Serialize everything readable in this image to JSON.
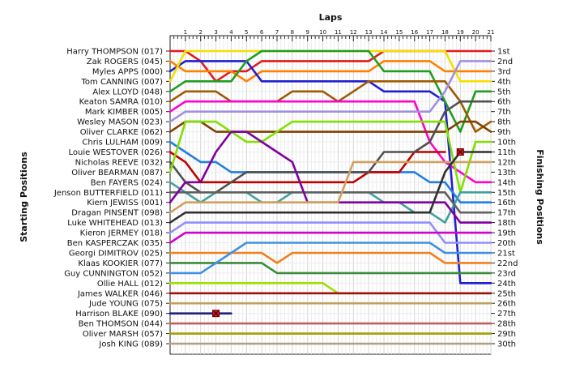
{
  "chart_data": {
    "type": "line",
    "title": "",
    "top_axis_title": "Laps",
    "left_axis_title": "Starting Positions",
    "right_axis_title": "Finishing Positions",
    "laps": [
      1,
      2,
      3,
      4,
      5,
      6,
      7,
      8,
      9,
      10,
      11,
      12,
      13,
      14,
      15,
      16,
      17,
      18,
      19,
      20,
      21
    ],
    "finishing_labels": [
      "1st",
      "2nd",
      "3rd",
      "4th",
      "5th",
      "6th",
      "7th",
      "8th",
      "9th",
      "10th",
      "11th",
      "12th",
      "13th",
      "14th",
      "15th",
      "16th",
      "17th",
      "18th",
      "19th",
      "20th",
      "21st",
      "22nd",
      "23rd",
      "24th",
      "25th",
      "26th",
      "27th",
      "28th",
      "29th",
      "30th"
    ],
    "grid_on": true,
    "inverted_y": true,
    "ylim": [
      1,
      30
    ],
    "xlim": [
      0,
      21
    ],
    "series": [
      {
        "name": "Harry THOMPSON (017)",
        "color": "#e41a1c",
        "positions": [
          1,
          1,
          2,
          4,
          3,
          3,
          2,
          2,
          2,
          2,
          2,
          2,
          2,
          2,
          1,
          1,
          1,
          1,
          1,
          1,
          1,
          1
        ]
      },
      {
        "name": "Zak ROGERS (045)",
        "color": "#ff7f00",
        "positions": [
          2,
          3,
          3,
          3,
          3,
          4,
          3,
          3,
          3,
          3,
          3,
          3,
          3,
          3,
          2,
          2,
          2,
          2,
          3,
          3,
          3,
          3
        ]
      },
      {
        "name": "Myles APPS (000)",
        "color": "#1f1fd0",
        "positions": [
          3,
          2,
          2,
          2,
          2,
          2,
          4,
          4,
          4,
          4,
          4,
          4,
          4,
          4,
          5,
          5,
          5,
          5,
          6,
          24,
          24,
          24
        ]
      },
      {
        "name": "Tom CANNING (007)",
        "color": "#f5e000",
        "positions": [
          4,
          1,
          1,
          1,
          1,
          1,
          1,
          1,
          1,
          1,
          1,
          1,
          1,
          1,
          1,
          1,
          1,
          1,
          1,
          4,
          4,
          4
        ]
      },
      {
        "name": "Alex LLOYD (048)",
        "color": "#1e9e1e",
        "positions": [
          5,
          4,
          4,
          4,
          4,
          2,
          1,
          1,
          1,
          1,
          1,
          1,
          1,
          1,
          3,
          3,
          3,
          3,
          6,
          9,
          5,
          5
        ]
      },
      {
        "name": "Keaton SAMRA (010)",
        "color": "#a05a00",
        "positions": [
          6,
          5,
          5,
          5,
          6,
          6,
          6,
          6,
          5,
          5,
          5,
          6,
          5,
          4,
          4,
          4,
          4,
          4,
          4,
          6,
          9,
          8
        ]
      },
      {
        "name": "Mark KIMBER (005)",
        "color": "#ff00cc",
        "positions": [
          7,
          6,
          6,
          6,
          6,
          6,
          6,
          6,
          6,
          6,
          6,
          6,
          6,
          6,
          6,
          6,
          6,
          10,
          12,
          13,
          14,
          14
        ]
      },
      {
        "name": "Wesley MASON (023)",
        "color": "#a090e0",
        "positions": [
          8,
          7,
          7,
          7,
          7,
          7,
          7,
          7,
          7,
          7,
          7,
          7,
          7,
          7,
          7,
          7,
          7,
          7,
          5,
          2,
          2,
          2
        ]
      },
      {
        "name": "Oliver CLARKE (062)",
        "color": "#804000",
        "positions": [
          9,
          8,
          8,
          9,
          9,
          9,
          9,
          9,
          9,
          9,
          9,
          9,
          9,
          9,
          9,
          9,
          9,
          9,
          9,
          8,
          8,
          9
        ]
      },
      {
        "name": "Chris LULHAM (009)",
        "color": "#2080e0",
        "positions": [
          10,
          11,
          12,
          12,
          13,
          13,
          13,
          13,
          13,
          13,
          13,
          13,
          13,
          13,
          13,
          13,
          13,
          14,
          14,
          16,
          16,
          16
        ]
      },
      {
        "name": "Louie WESTOVER (026)",
        "color": "#c00000",
        "positions": [
          11,
          12,
          14,
          14,
          14,
          14,
          14,
          14,
          14,
          14,
          14,
          14,
          14,
          13,
          13,
          13,
          11,
          11,
          11
        ]
      },
      {
        "name": "Nicholas REEVE (032)",
        "color": "#505050",
        "positions": [
          12,
          14,
          15,
          15,
          14,
          13,
          13,
          13,
          13,
          13,
          13,
          13,
          13,
          13,
          11,
          11,
          11,
          10,
          7,
          6,
          6,
          6
        ]
      },
      {
        "name": "Oliver BEARMAN (087)",
        "color": "#80e000",
        "positions": [
          13,
          8,
          8,
          8,
          9,
          10,
          10,
          9,
          8,
          8,
          8,
          8,
          8,
          8,
          8,
          8,
          8,
          8,
          8,
          15,
          10,
          10
        ]
      },
      {
        "name": "Ben FAYERS (024)",
        "color": "#40a0a0",
        "positions": [
          14,
          15,
          16,
          15,
          15,
          15,
          16,
          16,
          15,
          15,
          15,
          15,
          15,
          15,
          16,
          16,
          17,
          17,
          18,
          15,
          15,
          15
        ]
      },
      {
        "name": "Jenson BUTTERFIELD (011)",
        "color": "#606060",
        "positions": [
          15,
          15,
          15,
          15,
          15,
          15,
          15,
          15,
          15,
          15,
          15,
          15,
          15,
          15,
          15,
          15,
          15,
          15,
          15,
          17,
          17,
          17
        ]
      },
      {
        "name": "Kiern JEWISS (001)",
        "color": "#8000a0",
        "positions": [
          16,
          14,
          14,
          11,
          9,
          9,
          10,
          11,
          12,
          16,
          16,
          16,
          16,
          16,
          16,
          16,
          16,
          16,
          16,
          18,
          18,
          18
        ]
      },
      {
        "name": "Dragan PINSENT (098)",
        "color": "#d0a060",
        "positions": [
          17,
          16,
          16,
          16,
          16,
          16,
          16,
          16,
          16,
          16,
          16,
          16,
          12,
          12,
          12,
          12,
          12,
          12,
          12,
          12,
          12,
          12
        ]
      },
      {
        "name": "Luke WHITEHEAD (013)",
        "color": "#303030",
        "positions": [
          18,
          17,
          17,
          17,
          17,
          17,
          17,
          17,
          17,
          17,
          17,
          17,
          17,
          17,
          17,
          17,
          17,
          17,
          13,
          11,
          11,
          11
        ]
      },
      {
        "name": "Kieron JERMEY (018)",
        "color": "#9090ff",
        "positions": [
          19,
          18,
          18,
          18,
          18,
          18,
          18,
          18,
          18,
          18,
          18,
          18,
          18,
          18,
          18,
          18,
          18,
          18,
          20,
          20,
          20,
          20
        ]
      },
      {
        "name": "Ben KASPERCZAK (035)",
        "color": "#d000d0",
        "positions": [
          20,
          19,
          19,
          19,
          19,
          19,
          19,
          19,
          19,
          19,
          19,
          19,
          19,
          19,
          19,
          19,
          19,
          19,
          19,
          19,
          19,
          19
        ]
      },
      {
        "name": "Georgi DIMITROV (025)",
        "color": "#f08020",
        "positions": [
          21,
          21,
          21,
          21,
          21,
          21,
          21,
          22,
          21,
          21,
          21,
          21,
          21,
          21,
          21,
          21,
          21,
          21,
          22,
          22,
          22,
          22
        ]
      },
      {
        "name": "Klaas KOOKIER (077)",
        "color": "#3a8a3a",
        "positions": [
          22,
          22,
          22,
          22,
          22,
          22,
          22,
          23,
          23,
          23,
          23,
          23,
          23,
          23,
          23,
          23,
          23,
          23,
          23,
          23,
          23,
          23
        ]
      },
      {
        "name": "Guy CUNNINGTON (052)",
        "color": "#4090e0",
        "positions": [
          23,
          23,
          23,
          22,
          21,
          20,
          20,
          20,
          20,
          20,
          20,
          20,
          20,
          20,
          20,
          20,
          20,
          20,
          21,
          21,
          21,
          21
        ]
      },
      {
        "name": "Ollie HALL (012)",
        "color": "#a0e000",
        "positions": [
          24,
          24,
          24,
          24,
          24,
          24,
          24,
          24,
          24,
          24,
          24,
          25,
          25,
          25,
          25,
          25,
          25,
          25,
          25,
          25,
          25,
          25
        ]
      },
      {
        "name": "James WALKER (046)",
        "color": "#a01010",
        "positions": [
          25,
          25,
          25,
          25,
          25,
          25,
          25,
          25,
          25,
          25,
          25,
          25,
          25,
          25,
          25,
          25,
          25,
          25,
          25,
          25,
          25,
          25
        ]
      },
      {
        "name": "Jude YOUNG (075)",
        "color": "#c0a060",
        "positions": [
          26,
          26,
          26,
          26,
          26,
          26,
          26,
          26,
          26,
          26,
          26,
          26,
          26,
          26,
          26,
          26,
          26,
          26,
          26,
          26,
          26,
          26
        ]
      },
      {
        "name": "Harrison BLAKE (090)",
        "color": "#202080",
        "positions": [
          27,
          27,
          27,
          27,
          27
        ]
      },
      {
        "name": "Ben THOMSON (044)",
        "color": "#c06060",
        "positions": [
          28,
          28,
          28,
          28,
          28,
          28,
          28,
          28,
          28,
          28,
          28,
          28,
          28,
          28,
          28,
          28,
          28,
          28,
          28,
          28,
          28,
          28
        ]
      },
      {
        "name": "Oliver MARSH (057)",
        "color": "#a0a000",
        "positions": [
          29,
          29,
          29,
          29,
          29,
          29,
          29,
          29,
          29,
          29,
          29,
          29,
          29,
          29,
          29,
          29,
          29,
          29,
          29,
          29,
          29,
          29
        ]
      },
      {
        "name": "Josh KING (089)",
        "color": "#b0a080",
        "positions": [
          30,
          30,
          30,
          30,
          30,
          30,
          30,
          30,
          30,
          30,
          30,
          30,
          30,
          30,
          30,
          30,
          30,
          30,
          30,
          30,
          30,
          30
        ]
      }
    ],
    "retirements": [
      {
        "driver": "Harrison BLAKE (090)",
        "lap": 3,
        "position": 27
      },
      {
        "driver": "Louie WESTOVER (026)",
        "lap": 19,
        "position": 11
      }
    ]
  }
}
